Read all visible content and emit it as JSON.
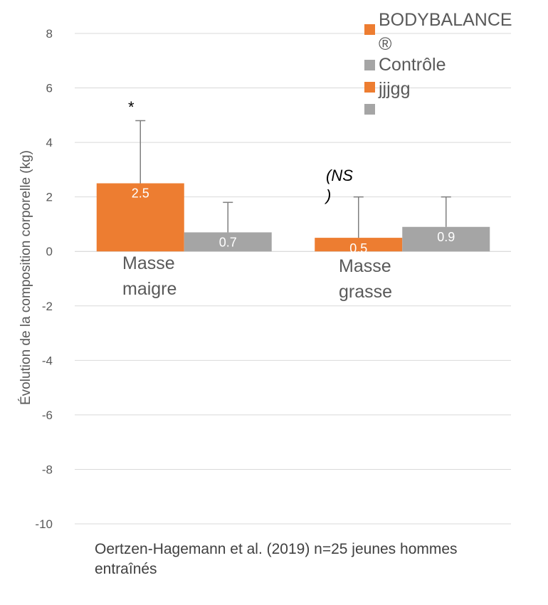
{
  "chart_data": {
    "type": "bar",
    "ylabel": "Évolution de la composition corporelle (kg)",
    "ylim": [
      -10,
      8
    ],
    "yticks": [
      "8",
      "6",
      "4",
      "2",
      "0",
      "-2",
      "-4",
      "-6",
      "-8",
      "-10"
    ],
    "categories": [
      "Masse maigre",
      "Masse grasse"
    ],
    "category_lines": [
      [
        "Masse",
        "maigre"
      ],
      [
        "Masse",
        "grasse"
      ]
    ],
    "series": [
      {
        "name": "BODYBALANCE®",
        "legend_lines": [
          "BODYBALANCE",
          "®"
        ],
        "color": "#ED7D31",
        "values": [
          2.5,
          0.5
        ],
        "errors": [
          2.3,
          1.5
        ],
        "labels": [
          "2.5",
          "0.5"
        ]
      },
      {
        "name": "Contrôle",
        "legend_lines": [
          "Contrôle"
        ],
        "color": "#A5A5A5",
        "values": [
          0.7,
          0.9
        ],
        "errors": [
          1.1,
          1.1
        ],
        "labels": [
          "0.7",
          "0.9"
        ]
      }
    ],
    "legend_extra": [
      {
        "text": "jjjgg",
        "color": "#ED7D31"
      },
      {
        "text": "",
        "color": "#A5A5A5"
      }
    ],
    "annotations": {
      "significant": "*",
      "ns_lines": [
        "(NS",
        ")"
      ]
    },
    "grid": true,
    "legend_position": "top-right"
  },
  "caption": {
    "line1": "Oertzen-Hagemann et al. (2019) n=25 jeunes hommes",
    "line2": "entraînés"
  }
}
